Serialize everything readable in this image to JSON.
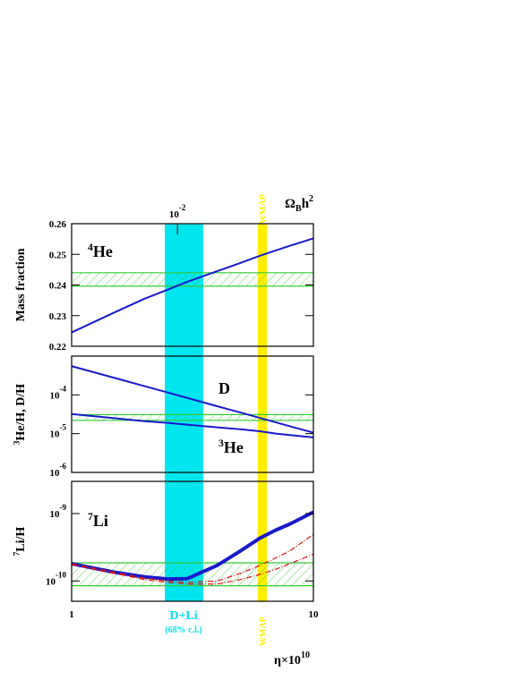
{
  "top_axis": {
    "label": {
      "base": "Ω",
      "sub": "B",
      "main": "h",
      "sup": "2"
    },
    "xlim": [
      0.00365,
      0.0365
    ],
    "xticks": [
      {
        "value": 0.01,
        "label": "10",
        "exponent": "-2"
      }
    ]
  },
  "x_axis_label": {
    "main": "η×10",
    "sup": "10"
  },
  "xlim": [
    1,
    10
  ],
  "xscale": "log",
  "xticks": [
    1,
    10
  ],
  "bands": [
    {
      "xlim": [
        2.43,
        3.5
      ],
      "color": "#00e5ee"
    },
    {
      "xlim": [
        5.89,
        6.42
      ],
      "color": "#ffee00"
    }
  ],
  "band_labels": {
    "wmap": "WMAP",
    "dli": "D+Li",
    "cl": "(68% c.l.)"
  },
  "chart_data": [
    {
      "type": "line",
      "ylabel": {
        "main": "Mass fraction"
      },
      "yscale": "linear",
      "ylim": [
        0.22,
        0.26
      ],
      "yticks": [
        0.22,
        0.23,
        0.24,
        0.25,
        0.26
      ],
      "hband": [
        0.2396,
        0.244
      ],
      "annotations": [
        {
          "sup": "4",
          "main": "He"
        }
      ],
      "x": [
        1,
        1.5,
        2,
        2.5,
        3,
        4,
        5,
        6,
        7,
        8,
        10
      ],
      "series": [
        {
          "color": "#1a1acc",
          "values": [
            0.2245,
            0.231,
            0.2355,
            0.2385,
            0.241,
            0.2445,
            0.2472,
            0.2495,
            0.2513,
            0.2528,
            0.2552
          ]
        }
      ]
    },
    {
      "type": "line",
      "ylabel": {
        "sup": "3",
        "main": "He/H, D/H"
      },
      "yscale": "log",
      "ylim": [
        1e-06,
        0.001
      ],
      "yticks": [
        {
          "value": 0.0001,
          "label": "10",
          "exponent": "-4"
        },
        {
          "value": 1e-05,
          "label": "10",
          "exponent": "-5"
        },
        {
          "value": 1e-06,
          "label": "10",
          "exponent": "-6"
        }
      ],
      "hband": [
        2.2e-05,
        3.1e-05
      ],
      "annotations": [
        {
          "main": "D"
        },
        {
          "sup": "3",
          "main": "He"
        }
      ],
      "x": [
        1,
        1.5,
        2,
        2.5,
        3,
        4,
        5,
        6,
        7,
        8,
        10
      ],
      "series": [
        {
          "color": "#1a1acc",
          "values": [
            0.00055,
            0.000276,
            0.000168,
            0.000115,
            8.4e-05,
            5.1e-05,
            3.5e-05,
            2.55e-05,
            1.95e-05,
            1.55e-05,
            1.06e-05
          ]
        },
        {
          "color": "#1a1acc",
          "values": [
            3.2e-05,
            2.5e-05,
            2.1e-05,
            1.9e-05,
            1.7e-05,
            1.45e-05,
            1.3e-05,
            1.15e-05,
            1e-05,
            9.2e-06,
            8e-06
          ]
        }
      ]
    },
    {
      "type": "line",
      "ylabel": {
        "sup": "7",
        "main": "Li/H"
      },
      "yscale": "log",
      "ylim": [
        5e-11,
        3e-09
      ],
      "yticks": [
        {
          "value": 1e-09,
          "label": "10",
          "exponent": "-9"
        },
        {
          "value": 1e-10,
          "label": "10",
          "exponent": "-10"
        }
      ],
      "hband": [
        8.5e-11,
        1.86e-10
      ],
      "annotations": [
        {
          "sup": "7",
          "main": "Li"
        }
      ],
      "x": [
        1,
        1.5,
        2,
        2.5,
        3,
        4,
        5,
        6,
        7,
        8,
        10
      ],
      "series": [
        {
          "color": "#1a1acc",
          "values": [
            1.8e-10,
            1.35e-10,
            1.15e-10,
            1.07e-10,
            1.08e-10,
            1.7e-10,
            2.8e-10,
            4.3e-10,
            5.7e-10,
            7e-10,
            1.05e-09
          ]
        },
        {
          "color": "#dd1111",
          "dashed": true,
          "values": [
            1.8e-10,
            1.35e-10,
            1.1e-10,
            1e-10,
            9.5e-11,
            1e-10,
            1.3e-10,
            1.7e-10,
            2.2e-10,
            2.8e-10,
            4.9e-10
          ]
        },
        {
          "color": "#dd1111",
          "dashed": true,
          "values": [
            1.75e-10,
            1.3e-10,
            1.05e-10,
            9.5e-11,
            9e-11,
            9e-11,
            1.05e-10,
            1.25e-10,
            1.5e-10,
            1.8e-10,
            2.5e-10
          ]
        }
      ]
    }
  ]
}
